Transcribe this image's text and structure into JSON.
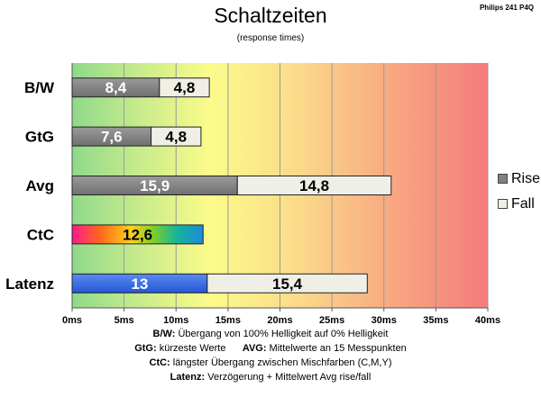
{
  "title": "Schaltzeiten",
  "subtitle": "(response times)",
  "corner_label": "Philips 241  P4Q",
  "legend": {
    "rise": "Rise",
    "fall": "Fall",
    "rise_color": "#808080",
    "fall_color": "#f0efe6"
  },
  "footnotes": [
    {
      "key": "B/W:",
      "text": " Übergang von 100% Helligkeit auf 0% Helligkeit"
    },
    {
      "key": "GtG:",
      "text": " kürzeste Werte      ",
      "key2": "AVG:",
      "text2": " Mittelwerte an 15 Messpunkten"
    },
    {
      "key": "CtC:",
      "text": " längster Übergang zwischen Mischfarben (C,M,Y)"
    },
    {
      "key": "Latenz:",
      "text": " Verzögerung  + Mittelwert Avg rise/fall"
    }
  ],
  "chart_data": {
    "type": "bar",
    "orientation": "horizontal",
    "stacked": true,
    "categories": [
      "B/W",
      "GtG",
      "Avg",
      "CtC",
      "Latenz"
    ],
    "series": [
      {
        "name": "Rise",
        "values": [
          8.4,
          7.6,
          15.9,
          12.6,
          13
        ],
        "labels": [
          "8,4",
          "7,6",
          "15,9",
          "12,6",
          "13"
        ]
      },
      {
        "name": "Fall",
        "values": [
          4.8,
          4.8,
          14.8,
          null,
          15.4
        ],
        "labels": [
          "4,8",
          "4,8",
          "14,8",
          "",
          "15,4"
        ]
      }
    ],
    "special_fills": {
      "CtC": "rainbow",
      "Latenz": "blue"
    },
    "xlim": [
      0,
      40
    ],
    "xticks": [
      "0ms",
      "5ms",
      "10ms",
      "15ms",
      "20ms",
      "25ms",
      "30ms",
      "35ms",
      "40ms"
    ],
    "background": "gradient green-yellow-red",
    "grid": true,
    "legend_position": "right"
  }
}
